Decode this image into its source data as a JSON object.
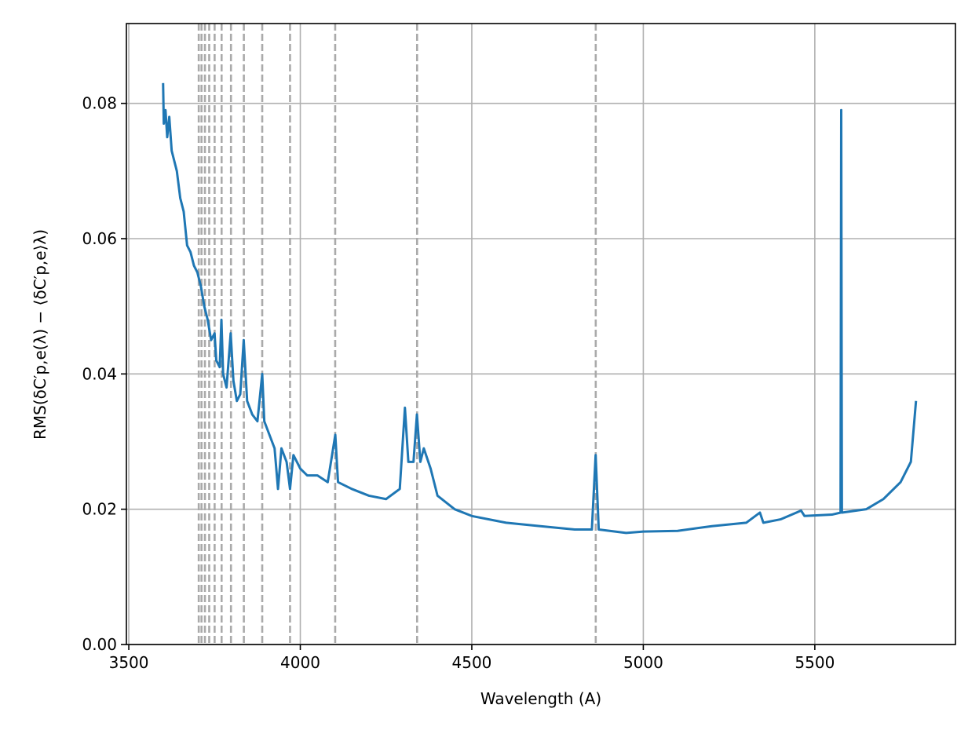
{
  "chart_data": {
    "type": "line",
    "xlabel": "Wavelength (A)",
    "ylabel": "RMS(δC′p,e(λ) − ⟨δC′p,e⟩λ)",
    "xlim": [
      3493,
      5910
    ],
    "ylim": [
      0,
      0.0918
    ],
    "xticks": [
      3500,
      4000,
      4500,
      5000,
      5500
    ],
    "yticks": [
      {
        "value": 0,
        "label": "0.00"
      },
      {
        "value": 0.02,
        "label": "0.02"
      },
      {
        "value": 0.04,
        "label": "0.04"
      },
      {
        "value": 0.06,
        "label": "0.06"
      },
      {
        "value": 0.08,
        "label": "0.08"
      }
    ],
    "grid": true,
    "vlines": {
      "color": "#aaaaaa",
      "style": "dashed",
      "x": [
        4861.3,
        4340.5,
        4101.7,
        3970.1,
        3889.0,
        3835.4,
        3797.9,
        3770.6,
        3750.2,
        3734.4,
        3721.9,
        3712.0,
        3703.9
      ]
    },
    "series": [
      {
        "color": "#1f77b4",
        "x": [
          3600,
          3602,
          3607,
          3612,
          3618,
          3625,
          3630,
          3640,
          3650,
          3660,
          3670,
          3680,
          3690,
          3700,
          3710,
          3720,
          3730,
          3740,
          3750,
          3755,
          3765,
          3770,
          3775,
          3785,
          3797,
          3805,
          3815,
          3825,
          3835,
          3845,
          3860,
          3875,
          3889,
          3895,
          3910,
          3925,
          3935,
          3945,
          3960,
          3970,
          3980,
          4000,
          4020,
          4050,
          4080,
          4102,
          4110,
          4150,
          4200,
          4250,
          4290,
          4305,
          4315,
          4330,
          4340,
          4350,
          4360,
          4380,
          4400,
          4450,
          4500,
          4600,
          4700,
          4800,
          4850,
          4861,
          4870,
          4950,
          5000,
          5100,
          5200,
          5300,
          5340,
          5350,
          5400,
          5460,
          5470,
          5550,
          5575,
          5577,
          5579,
          5650,
          5700,
          5750,
          5780,
          5795
        ],
        "values": [
          0.083,
          0.077,
          0.079,
          0.075,
          0.078,
          0.073,
          0.072,
          0.07,
          0.066,
          0.064,
          0.059,
          0.058,
          0.056,
          0.055,
          0.053,
          0.05,
          0.048,
          0.045,
          0.046,
          0.042,
          0.041,
          0.048,
          0.04,
          0.038,
          0.046,
          0.039,
          0.036,
          0.037,
          0.045,
          0.036,
          0.034,
          0.033,
          0.04,
          0.033,
          0.031,
          0.029,
          0.023,
          0.029,
          0.027,
          0.023,
          0.028,
          0.026,
          0.025,
          0.025,
          0.024,
          0.031,
          0.024,
          0.023,
          0.022,
          0.0215,
          0.023,
          0.035,
          0.027,
          0.027,
          0.034,
          0.027,
          0.029,
          0.026,
          0.022,
          0.02,
          0.019,
          0.018,
          0.0175,
          0.017,
          0.017,
          0.028,
          0.017,
          0.0165,
          0.0167,
          0.0168,
          0.0175,
          0.018,
          0.0195,
          0.018,
          0.0185,
          0.0198,
          0.019,
          0.0192,
          0.0195,
          0.079,
          0.0195,
          0.02,
          0.0215,
          0.024,
          0.027,
          0.036
        ]
      }
    ]
  }
}
